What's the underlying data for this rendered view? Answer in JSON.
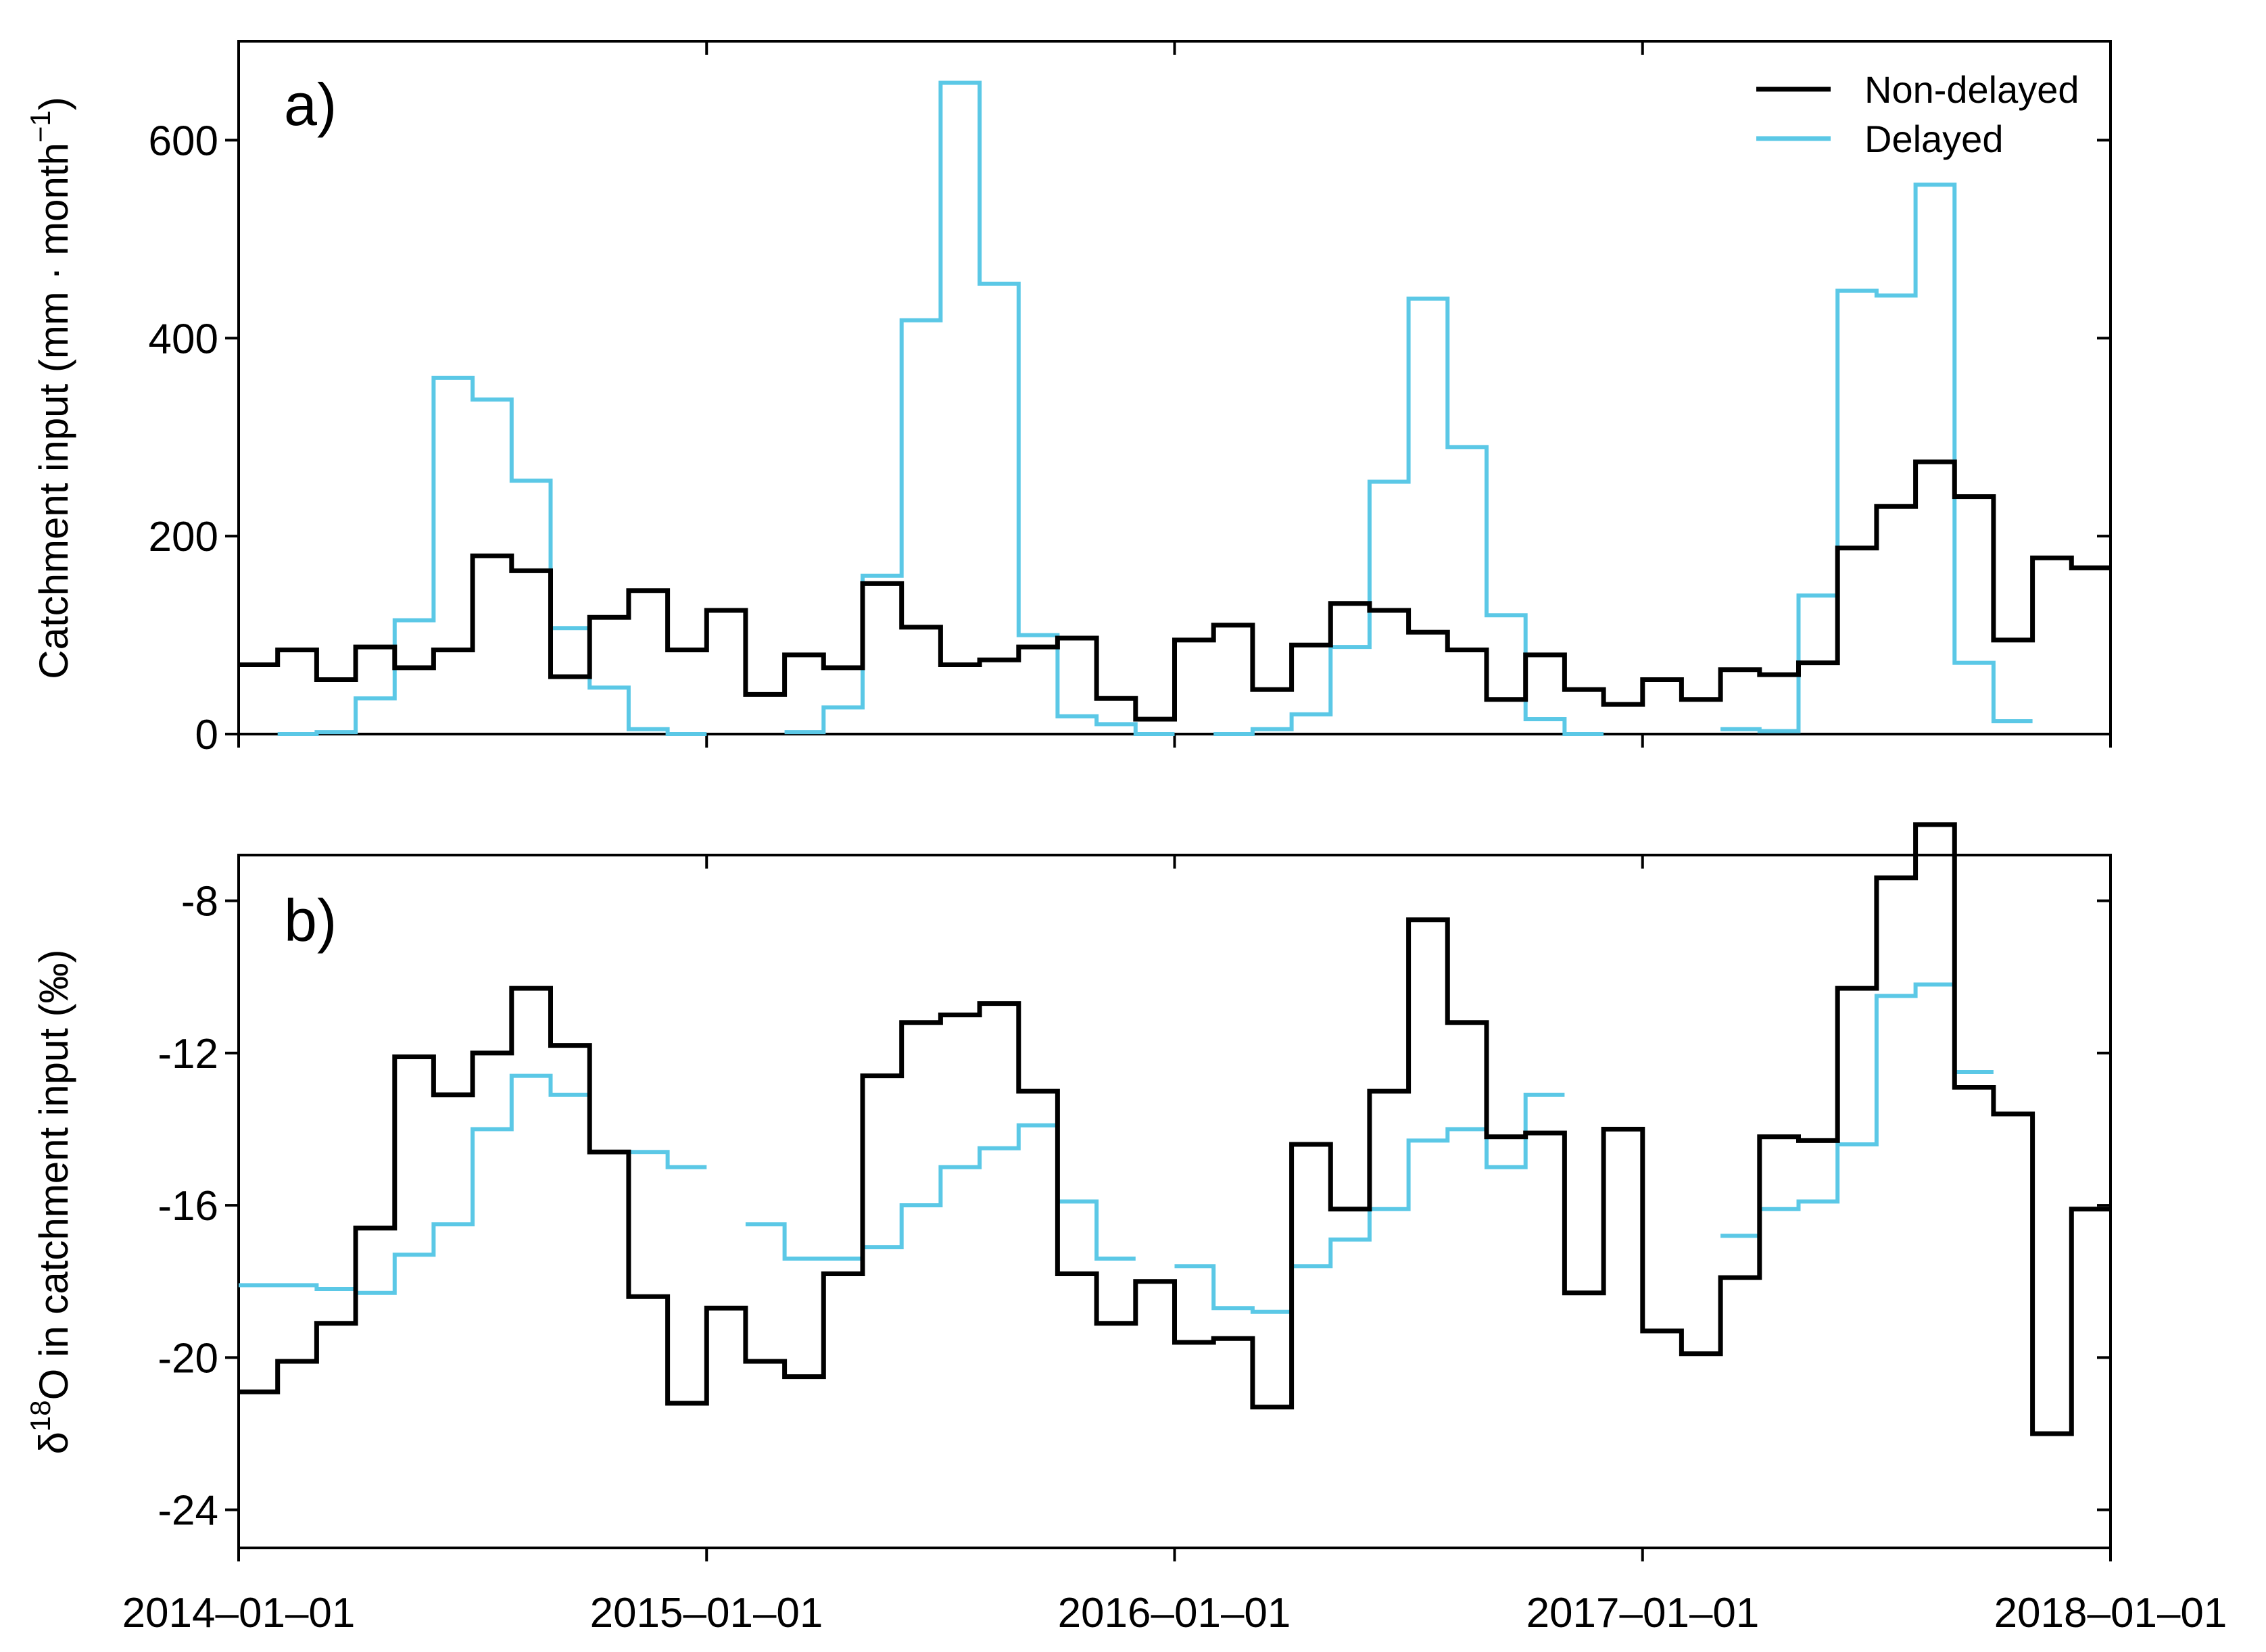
{
  "chart_data": [
    {
      "panel": "a)",
      "type": "line",
      "step": true,
      "ylabel": "Catchment input (mm · month⁻¹)",
      "ylabel_main": "Catchment input (mm · month",
      "ylabel_sup": "−1",
      "ylabel_end": ")",
      "ylim": [
        0,
        700
      ],
      "yticks": [
        0,
        200,
        400,
        600
      ],
      "xlim": [
        0,
        48
      ],
      "x_months_from": "2014-01-01",
      "legend": "top-right",
      "series": [
        {
          "name": "Non-delayed",
          "color": "#000000",
          "values": [
            70,
            85,
            55,
            88,
            67,
            85,
            180,
            165,
            58,
            118,
            145,
            85,
            125,
            40,
            80,
            67,
            152,
            108,
            70,
            75,
            88,
            97,
            36,
            15,
            95,
            110,
            45,
            90,
            132,
            125,
            103,
            85,
            35,
            80,
            45,
            30,
            55,
            35,
            65,
            60,
            72,
            188,
            230,
            275,
            240,
            95,
            178,
            168
          ]
        },
        {
          "name": "Delayed",
          "color": "#5bc8e6",
          "values": [
            null,
            0,
            2,
            36,
            115,
            360,
            338,
            256,
            107,
            47,
            5,
            0,
            null,
            null,
            2,
            27,
            160,
            418,
            658,
            455,
            100,
            18,
            10,
            0,
            null,
            0,
            5,
            20,
            88,
            255,
            440,
            290,
            120,
            15,
            0,
            null,
            null,
            null,
            5,
            3,
            140,
            448,
            443,
            555,
            72,
            13,
            null,
            null
          ]
        }
      ]
    },
    {
      "panel": "b)",
      "type": "line",
      "step": true,
      "ylabel": "δ18O in catchment input (‰)",
      "ylabel_delta": "δ",
      "ylabel_sup": "18",
      "ylabel_rest": "O in catchment input (‰)",
      "ylim": [
        -25,
        -6.8
      ],
      "yticks": [
        -24,
        -20,
        -16,
        -12,
        -8
      ],
      "xlim": [
        0,
        48
      ],
      "x_months_from": "2014-01-01",
      "series": [
        {
          "name": "Non-delayed",
          "color": "#000000",
          "values": [
            -20.9,
            -20.1,
            -19.1,
            -16.6,
            -12.1,
            -13.1,
            -12.0,
            -10.3,
            -11.8,
            -14.6,
            -18.4,
            -21.2,
            -18.7,
            -20.1,
            -20.5,
            -17.8,
            -12.6,
            -11.2,
            -11.0,
            -10.7,
            -13.0,
            -17.8,
            -19.1,
            -18.0,
            -19.6,
            -19.5,
            -21.3,
            -14.4,
            -16.1,
            -13.0,
            -8.5,
            -11.2,
            -14.2,
            -14.1,
            -18.3,
            -14.0,
            -19.3,
            -19.9,
            -17.9,
            -14.2,
            -14.3,
            -10.3,
            -7.4,
            -6.0,
            -12.9,
            -13.6,
            -22.0,
            -16.1
          ]
        },
        {
          "name": "Delayed",
          "color": "#5bc8e6",
          "values": [
            -18.1,
            -18.1,
            -18.2,
            -18.3,
            -17.3,
            -16.5,
            -14.0,
            -12.6,
            -13.1,
            -14.6,
            -14.6,
            -15.0,
            null,
            -16.5,
            -17.4,
            -17.4,
            -17.1,
            -16.0,
            -15.0,
            -14.5,
            -13.9,
            -15.9,
            -17.4,
            null,
            -17.6,
            -18.7,
            -18.8,
            -17.6,
            -16.9,
            -16.1,
            -14.3,
            -14.0,
            -15.0,
            -13.1,
            null,
            null,
            null,
            null,
            -16.8,
            -16.1,
            -15.9,
            -14.4,
            -10.5,
            -10.2,
            -12.5,
            null,
            null,
            null
          ]
        }
      ]
    }
  ],
  "x_tick_labels": [
    "2014–01–01",
    "2015–01–01",
    "2016–01–01",
    "2017–01–01",
    "2018–01–01"
  ],
  "legend_entries": [
    "Non-delayed",
    "Delayed"
  ]
}
